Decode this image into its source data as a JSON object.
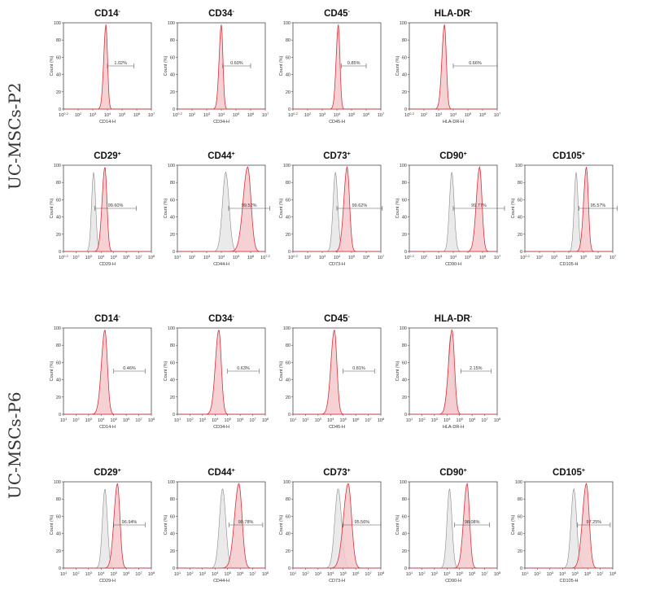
{
  "groups": [
    {
      "id": "p2",
      "label": "UC-MSCs-P2"
    },
    {
      "id": "p6",
      "label": "UC-MSCs-P6"
    }
  ],
  "colors": {
    "stain": "#d8303a",
    "stain_fill": "#f5c9cc",
    "iso": "#8a8a8a",
    "iso_fill": "#e6e6e6",
    "gate": "#555555",
    "axis": "#333333"
  },
  "chart_data": [
    {
      "type": "area",
      "group": "UC-MSCs-P2",
      "marker": "CD14",
      "sign": "-",
      "percent": "1.02%",
      "ylabel": "Count (%)",
      "xlabel": "CD14-H",
      "x_ticks": [
        "10^0.2",
        "10^2",
        "10^3",
        "10^4",
        "10^5",
        "10^6",
        "10^7"
      ],
      "y_ticks": [
        "0",
        "20",
        "40",
        "60",
        "80",
        "100"
      ],
      "ylim": [
        0,
        100
      ],
      "stain_peak_log": 2.9,
      "stain_width": 0.12,
      "iso_peak_log": null,
      "gate_log": [
        3.0,
        4.8
      ]
    },
    {
      "type": "area",
      "group": "UC-MSCs-P2",
      "marker": "CD34",
      "sign": "-",
      "percent": "0.60%",
      "ylabel": "Count (%)",
      "xlabel": "CD34-H",
      "x_ticks": [
        "10^0.2",
        "10^2",
        "10^3",
        "10^4",
        "10^5",
        "10^6",
        "10^7"
      ],
      "y_ticks": [
        "0",
        "20",
        "40",
        "60",
        "80",
        "100"
      ],
      "ylim": [
        0,
        100
      ],
      "stain_peak_log": 3.0,
      "stain_width": 0.12,
      "iso_peak_log": null,
      "gate_log": [
        3.1,
        5.0
      ]
    },
    {
      "type": "area",
      "group": "UC-MSCs-P2",
      "marker": "CD45",
      "sign": "-",
      "percent": "0.85%",
      "ylabel": "Count (%)",
      "xlabel": "CD45-H",
      "x_ticks": [
        "10^0.2",
        "10^2",
        "10^3",
        "10^4",
        "10^5",
        "10^6",
        "10^7"
      ],
      "y_ticks": [
        "0",
        "20",
        "40",
        "60",
        "80",
        "100"
      ],
      "ylim": [
        0,
        100
      ],
      "stain_peak_log": 3.1,
      "stain_width": 0.12,
      "iso_peak_log": null,
      "gate_log": [
        3.3,
        5.0
      ]
    },
    {
      "type": "area",
      "group": "UC-MSCs-P2",
      "marker": "HLA-DR",
      "sign": "-",
      "percent": "0.66%",
      "ylabel": "Count (%)",
      "xlabel": "HLA-DR-H",
      "x_ticks": [
        "10^0.2",
        "10^2",
        "10^3",
        "10^4",
        "10^5",
        "10^6",
        "10^7"
      ],
      "y_ticks": [
        "0",
        "20",
        "40",
        "60",
        "80",
        "100"
      ],
      "ylim": [
        0,
        100
      ],
      "stain_peak_log": 2.4,
      "stain_width": 0.14,
      "iso_peak_log": null,
      "gate_log": [
        3.0,
        6.0
      ]
    },
    {
      "type": "area",
      "group": "UC-MSCs-P2",
      "marker": "CD29",
      "sign": "+",
      "percent": "99.60%",
      "ylabel": "Count (%)",
      "xlabel": "CD29-H",
      "x_ticks": [
        "10^0.2",
        "10^2",
        "10^3",
        "10^4",
        "10^5",
        "10^6",
        "10^7",
        "10^8"
      ],
      "y_ticks": [
        "0",
        "20",
        "40",
        "60",
        "80",
        "100"
      ],
      "ylim": [
        0,
        100
      ],
      "stain_peak_log": 3.3,
      "stain_width": 0.18,
      "iso_peak_log": 2.4,
      "gate_log": [
        2.5,
        5.8
      ]
    },
    {
      "type": "area",
      "group": "UC-MSCs-P2",
      "marker": "CD44",
      "sign": "+",
      "percent": "99.52%",
      "ylabel": "Count (%)",
      "xlabel": "CD44-H",
      "x_ticks": [
        "10^1",
        "10^2",
        "10^3",
        "10^4",
        "10^5",
        "10^6",
        "10^7.2"
      ],
      "y_ticks": [
        "0",
        "20",
        "40",
        "60",
        "80",
        "100"
      ],
      "ylim": [
        0,
        100
      ],
      "stain_peak_log": 4.8,
      "stain_width": 0.25,
      "iso_peak_log": 3.3,
      "gate_log": [
        3.5,
        6.3
      ]
    },
    {
      "type": "area",
      "group": "UC-MSCs-P2",
      "marker": "CD73",
      "sign": "+",
      "percent": "99.62%",
      "ylabel": "Count (%)",
      "xlabel": "CD73-H",
      "x_ticks": [
        "10^0.2",
        "10^2",
        "10^3",
        "10^4",
        "10^5",
        "10^6",
        "10^7"
      ],
      "y_ticks": [
        "0",
        "20",
        "40",
        "60",
        "80",
        "100"
      ],
      "ylim": [
        0,
        100
      ],
      "stain_peak_log": 3.7,
      "stain_width": 0.18,
      "iso_peak_log": 2.9,
      "gate_log": [
        3.0,
        6.1
      ]
    },
    {
      "type": "area",
      "group": "UC-MSCs-P2",
      "marker": "CD90",
      "sign": "+",
      "percent": "99.77%",
      "ylabel": "Count (%)",
      "xlabel": "CD90-H",
      "x_ticks": [
        "10^0.2",
        "10^2",
        "10^3",
        "10^4",
        "10^5",
        "10^6",
        "10^7"
      ],
      "y_ticks": [
        "0",
        "20",
        "40",
        "60",
        "80",
        "100"
      ],
      "ylim": [
        0,
        100
      ],
      "stain_peak_log": 4.8,
      "stain_width": 0.18,
      "iso_peak_log": 2.9,
      "gate_log": [
        3.0,
        6.5
      ]
    },
    {
      "type": "area",
      "group": "UC-MSCs-P2",
      "marker": "CD105",
      "sign": "+",
      "percent": "95.57%",
      "ylabel": "Count (%)",
      "xlabel": "CD105-H",
      "x_ticks": [
        "10^0.2",
        "10^2",
        "10^3",
        "10^4",
        "10^5",
        "10^6",
        "10^7"
      ],
      "y_ticks": [
        "0",
        "20",
        "40",
        "60",
        "80",
        "100"
      ],
      "ylim": [
        0,
        100
      ],
      "stain_peak_log": 4.2,
      "stain_width": 0.15,
      "iso_peak_log": 3.5,
      "gate_log": [
        3.7,
        6.3
      ]
    },
    {
      "type": "area",
      "group": "UC-MSCs-P6",
      "marker": "CD14",
      "sign": "-",
      "percent": "0.46%",
      "ylabel": "Count (%)",
      "xlabel": "CD14-H",
      "x_ticks": [
        "10^1",
        "10^2",
        "10^3",
        "10^4",
        "10^5",
        "10^6",
        "10^7",
        "10^8"
      ],
      "y_ticks": [
        "0",
        "20",
        "40",
        "60",
        "80",
        "100"
      ],
      "ylim": [
        0,
        100
      ],
      "stain_peak_log": 3.3,
      "stain_width": 0.22,
      "iso_peak_log": null,
      "gate_log": [
        4.0,
        6.5
      ]
    },
    {
      "type": "area",
      "group": "UC-MSCs-P6",
      "marker": "CD34",
      "sign": "-",
      "percent": "0.63%",
      "ylabel": "Count (%)",
      "xlabel": "CD34-H",
      "x_ticks": [
        "10^1",
        "10^2",
        "10^3",
        "10^4",
        "10^5",
        "10^6",
        "10^7",
        "10^8"
      ],
      "y_ticks": [
        "0",
        "20",
        "40",
        "60",
        "80",
        "100"
      ],
      "ylim": [
        0,
        100
      ],
      "stain_peak_log": 3.3,
      "stain_width": 0.22,
      "iso_peak_log": null,
      "gate_log": [
        4.0,
        6.5
      ]
    },
    {
      "type": "area",
      "group": "UC-MSCs-P6",
      "marker": "CD45",
      "sign": "-",
      "percent": "0.81%",
      "ylabel": "Count (%)",
      "xlabel": "CD45-H",
      "x_ticks": [
        "10^1",
        "10^2",
        "10^3",
        "10^4",
        "10^5",
        "10^6",
        "10^7",
        "10^8"
      ],
      "y_ticks": [
        "0",
        "20",
        "40",
        "60",
        "80",
        "100"
      ],
      "ylim": [
        0,
        100
      ],
      "stain_peak_log": 3.3,
      "stain_width": 0.22,
      "iso_peak_log": null,
      "gate_log": [
        4.0,
        6.5
      ]
    },
    {
      "type": "area",
      "group": "UC-MSCs-P6",
      "marker": "HLA-DR",
      "sign": "-",
      "percent": "2.15%",
      "ylabel": "Count (%)",
      "xlabel": "HLA-DR-H",
      "x_ticks": [
        "10^1",
        "10^2",
        "10^3",
        "10^4",
        "10^5",
        "10^6",
        "10^7",
        "10^8"
      ],
      "y_ticks": [
        "0",
        "20",
        "40",
        "60",
        "80",
        "100"
      ],
      "ylim": [
        0,
        100
      ],
      "stain_peak_log": 3.4,
      "stain_width": 0.22,
      "iso_peak_log": 3.3,
      "gate_log": [
        4.1,
        6.5
      ]
    },
    {
      "type": "area",
      "group": "UC-MSCs-P6",
      "marker": "CD29",
      "sign": "+",
      "percent": "96.94%",
      "ylabel": "Count (%)",
      "xlabel": "CD29-H",
      "x_ticks": [
        "10^1",
        "10^2",
        "10^3",
        "10^4",
        "10^5",
        "10^6",
        "10^7",
        "10^8"
      ],
      "y_ticks": [
        "0",
        "20",
        "40",
        "60",
        "80",
        "100"
      ],
      "ylim": [
        0,
        100
      ],
      "stain_peak_log": 4.3,
      "stain_width": 0.22,
      "iso_peak_log": 3.3,
      "gate_log": [
        4.0,
        6.5
      ]
    },
    {
      "type": "area",
      "group": "UC-MSCs-P6",
      "marker": "CD44",
      "sign": "+",
      "percent": "99.78%",
      "ylabel": "Count (%)",
      "xlabel": "CD44-H",
      "x_ticks": [
        "10^1",
        "10^2",
        "10^3",
        "10^4",
        "10^5",
        "10^6",
        "10^7",
        "10^8"
      ],
      "y_ticks": [
        "0",
        "20",
        "40",
        "60",
        "80",
        "100"
      ],
      "ylim": [
        0,
        100
      ],
      "stain_peak_log": 4.9,
      "stain_width": 0.28,
      "iso_peak_log": 3.6,
      "gate_log": [
        4.1,
        6.8
      ]
    },
    {
      "type": "area",
      "group": "UC-MSCs-P6",
      "marker": "CD73",
      "sign": "+",
      "percent": "95.56%",
      "ylabel": "Count (%)",
      "xlabel": "CD73-H",
      "x_ticks": [
        "10^1",
        "10^2",
        "10^3",
        "10^4",
        "10^5",
        "10^6",
        "10^7",
        "10^8"
      ],
      "y_ticks": [
        "0",
        "20",
        "40",
        "60",
        "80",
        "100"
      ],
      "ylim": [
        0,
        100
      ],
      "stain_peak_log": 4.4,
      "stain_width": 0.3,
      "iso_peak_log": 3.6,
      "gate_log": [
        4.0,
        7.0
      ]
    },
    {
      "type": "area",
      "group": "UC-MSCs-P6",
      "marker": "CD90",
      "sign": "+",
      "percent": "98.08%",
      "ylabel": "Count (%)",
      "xlabel": "CD90-H",
      "x_ticks": [
        "10^1",
        "10^2",
        "10^3",
        "10^4",
        "10^5",
        "10^6",
        "10^7",
        "10^8"
      ],
      "y_ticks": [
        "0",
        "20",
        "40",
        "60",
        "80",
        "100"
      ],
      "ylim": [
        0,
        100
      ],
      "stain_peak_log": 4.6,
      "stain_width": 0.22,
      "iso_peak_log": 3.2,
      "gate_log": [
        3.6,
        6.4
      ]
    },
    {
      "type": "area",
      "group": "UC-MSCs-P6",
      "marker": "CD105",
      "sign": "+",
      "percent": "97.25%",
      "ylabel": "Count (%)",
      "xlabel": "CD105-H",
      "x_ticks": [
        "10^1",
        "10^2",
        "10^3",
        "10^4",
        "10^5",
        "10^6",
        "10^7",
        "10^8"
      ],
      "y_ticks": [
        "0",
        "20",
        "40",
        "60",
        "80",
        "100"
      ],
      "ylim": [
        0,
        100
      ],
      "stain_peak_log": 4.9,
      "stain_width": 0.25,
      "iso_peak_log": 3.9,
      "gate_log": [
        4.2,
        6.8
      ]
    }
  ]
}
